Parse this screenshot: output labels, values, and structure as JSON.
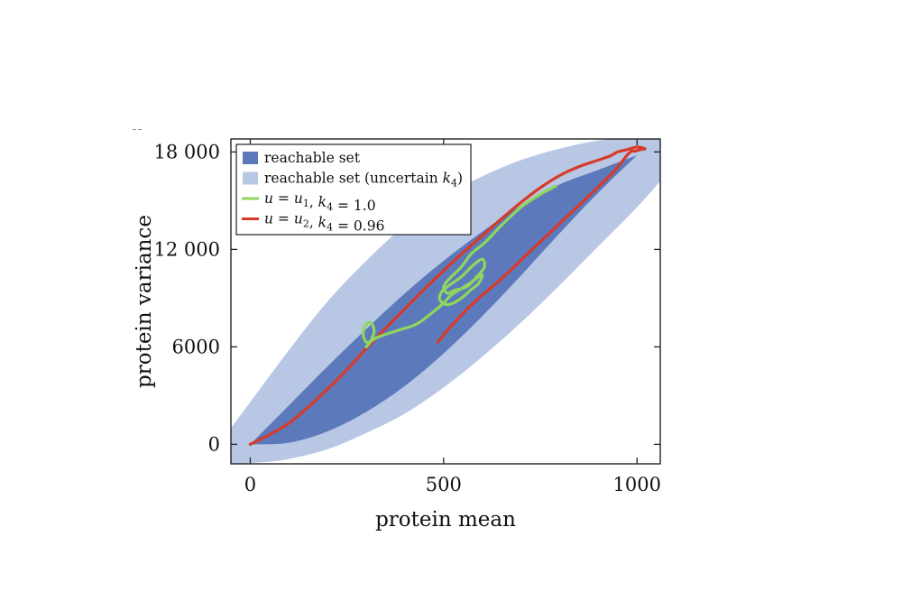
{
  "chart_data": {
    "type": "area",
    "title": "",
    "xlabel": "protein mean",
    "ylabel": "protein variance",
    "xlim": [
      -50,
      1060
    ],
    "ylim": [
      -1200,
      18800
    ],
    "x_ticks": [
      {
        "value": 0,
        "label": "0"
      },
      {
        "value": 500,
        "label": "500"
      },
      {
        "value": 1000,
        "label": "1000"
      }
    ],
    "y_ticks": [
      {
        "value": 0,
        "label": "0"
      },
      {
        "value": 6000,
        "label": "6000"
      },
      {
        "value": 12000,
        "label": "12 000"
      },
      {
        "value": 18000,
        "label": "18 000"
      }
    ],
    "grid": false,
    "legend_position": "top-left",
    "colors": {
      "outer_region": "#b7c7e4",
      "inner_region": "#5b79bb",
      "green_line": "#8fd65e",
      "red_line": "#d83a2a"
    },
    "legend": [
      {
        "key": "inner",
        "kind": "swatch",
        "label": "reachable set"
      },
      {
        "key": "outer",
        "kind": "swatch",
        "label": "reachable set (uncertain ",
        "sym": "k",
        "sub": "4",
        "tail": ")"
      },
      {
        "key": "green",
        "kind": "line",
        "label": "u = u1, k4 = 1.0",
        "parts": [
          [
            "u",
            1
          ],
          [
            " = ",
            0
          ],
          [
            "u",
            1
          ],
          [
            "1",
            "sub"
          ],
          [
            ", ",
            0
          ],
          [
            "k",
            1
          ],
          [
            "4",
            "sub"
          ],
          [
            " = 1.0",
            0
          ]
        ]
      },
      {
        "key": "red",
        "kind": "line",
        "label": "u = u2, k4 = 0.96",
        "parts": [
          [
            "u",
            1
          ],
          [
            " = ",
            0
          ],
          [
            "u",
            1
          ],
          [
            "2",
            "sub"
          ],
          [
            ", ",
            0
          ],
          [
            "k",
            1
          ],
          [
            "4",
            "sub"
          ],
          [
            " = 0.96",
            0
          ]
        ]
      }
    ],
    "series": [
      {
        "key": "outer",
        "type": "area",
        "upper": [
          [
            -50,
            1000
          ],
          [
            0,
            2600
          ],
          [
            100,
            5800
          ],
          [
            200,
            8800
          ],
          [
            300,
            11300
          ],
          [
            400,
            13500
          ],
          [
            500,
            15200
          ],
          [
            600,
            16500
          ],
          [
            700,
            17500
          ],
          [
            800,
            18200
          ],
          [
            900,
            18700
          ],
          [
            1000,
            18900
          ],
          [
            1060,
            18950
          ]
        ],
        "lower": [
          [
            1060,
            16200
          ],
          [
            1000,
            14600
          ],
          [
            900,
            12200
          ],
          [
            800,
            9800
          ],
          [
            700,
            7500
          ],
          [
            600,
            5400
          ],
          [
            500,
            3500
          ],
          [
            400,
            1900
          ],
          [
            300,
            700
          ],
          [
            200,
            -300
          ],
          [
            100,
            -900
          ],
          [
            30,
            -1100
          ],
          [
            -50,
            -1200
          ]
        ]
      },
      {
        "key": "inner",
        "type": "area",
        "upper": [
          [
            0,
            0
          ],
          [
            100,
            2400
          ],
          [
            200,
            4800
          ],
          [
            300,
            7100
          ],
          [
            400,
            9300
          ],
          [
            500,
            11300
          ],
          [
            600,
            13100
          ],
          [
            700,
            14700
          ],
          [
            800,
            16000
          ],
          [
            900,
            16900
          ],
          [
            1000,
            17800
          ]
        ],
        "lower": [
          [
            1000,
            17800
          ],
          [
            900,
            15500
          ],
          [
            800,
            13000
          ],
          [
            700,
            10400
          ],
          [
            600,
            7900
          ],
          [
            500,
            5600
          ],
          [
            400,
            3600
          ],
          [
            300,
            2000
          ],
          [
            200,
            800
          ],
          [
            100,
            100
          ],
          [
            0,
            0
          ]
        ]
      },
      {
        "key": "red",
        "type": "line",
        "points": [
          [
            0,
            0
          ],
          [
            50,
            600
          ],
          [
            100,
            1300
          ],
          [
            150,
            2300
          ],
          [
            200,
            3400
          ],
          [
            250,
            4600
          ],
          [
            300,
            5900
          ],
          [
            350,
            7150
          ],
          [
            400,
            8350
          ],
          [
            450,
            9550
          ],
          [
            500,
            10700
          ],
          [
            550,
            11800
          ],
          [
            600,
            12850
          ],
          [
            650,
            13900
          ],
          [
            700,
            14900
          ],
          [
            750,
            15800
          ],
          [
            800,
            16550
          ],
          [
            850,
            17100
          ],
          [
            900,
            17500
          ],
          [
            930,
            17750
          ],
          [
            950,
            18000
          ],
          [
            975,
            18150
          ],
          [
            1000,
            18300
          ],
          [
            1020,
            18200
          ],
          [
            1010,
            18150
          ],
          [
            995,
            18050
          ],
          [
            980,
            17950
          ],
          [
            940,
            16800
          ],
          [
            880,
            15400
          ],
          [
            800,
            13600
          ],
          [
            720,
            11800
          ],
          [
            650,
            10200
          ],
          [
            600,
            9200
          ],
          [
            560,
            8300
          ],
          [
            520,
            7300
          ],
          [
            485,
            6300
          ]
        ]
      },
      {
        "key": "green",
        "type": "line",
        "points": [
          [
            300,
            6000
          ],
          [
            310,
            6300
          ],
          [
            320,
            6900
          ],
          [
            315,
            7400
          ],
          [
            305,
            7500
          ],
          [
            295,
            7200
          ],
          [
            292,
            6700
          ],
          [
            300,
            6300
          ],
          [
            312,
            6350
          ],
          [
            330,
            6600
          ],
          [
            380,
            7000
          ],
          [
            430,
            7400
          ],
          [
            470,
            8100
          ],
          [
            500,
            8700
          ],
          [
            520,
            9200
          ],
          [
            560,
            9800
          ],
          [
            590,
            10300
          ],
          [
            600,
            10400
          ],
          [
            590,
            9900
          ],
          [
            570,
            9500
          ],
          [
            540,
            8900
          ],
          [
            510,
            8600
          ],
          [
            490,
            8900
          ],
          [
            495,
            9400
          ],
          [
            515,
            9800
          ],
          [
            545,
            10300
          ],
          [
            575,
            11000
          ],
          [
            600,
            11400
          ],
          [
            605,
            10900
          ],
          [
            585,
            10300
          ],
          [
            560,
            9700
          ],
          [
            530,
            9500
          ],
          [
            510,
            9300
          ],
          [
            500,
            9700
          ],
          [
            515,
            10200
          ],
          [
            545,
            10900
          ],
          [
            570,
            11700
          ],
          [
            590,
            12100
          ],
          [
            610,
            12500
          ],
          [
            650,
            13500
          ],
          [
            700,
            14600
          ],
          [
            750,
            15400
          ],
          [
            790,
            15900
          ]
        ]
      }
    ]
  }
}
